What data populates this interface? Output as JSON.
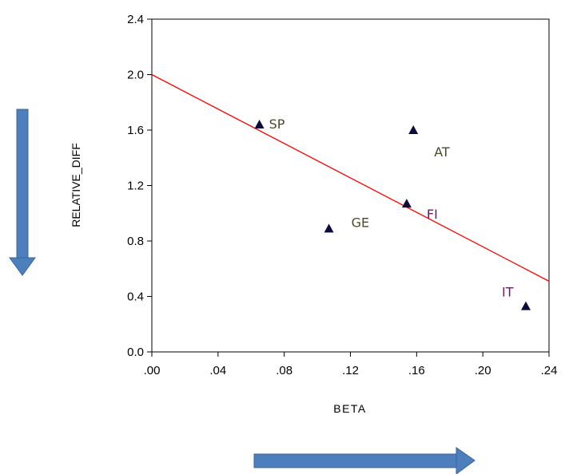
{
  "chart_data": {
    "type": "scatter",
    "xlabel": "BETA",
    "ylabel": "RELATIVE_DIFF",
    "xlim": [
      0.0,
      0.24
    ],
    "ylim": [
      0.0,
      2.4
    ],
    "x_ticks": [
      ".00",
      ".04",
      ".08",
      ".12",
      ".16",
      ".20",
      ".24"
    ],
    "y_ticks": [
      "0.0",
      "0.4",
      "0.8",
      "1.2",
      "1.6",
      "2.0",
      "2.4"
    ],
    "grid": false,
    "legend": "none",
    "points": [
      {
        "label": "SP",
        "x": 0.065,
        "y": 1.64
      },
      {
        "label": "AT",
        "x": 0.158,
        "y": 1.6
      },
      {
        "label": "FI",
        "x": 0.154,
        "y": 1.07
      },
      {
        "label": "GE",
        "x": 0.107,
        "y": 0.89
      },
      {
        "label": "IT",
        "x": 0.226,
        "y": 0.33
      }
    ],
    "fit_line": {
      "x": [
        0.0,
        0.24
      ],
      "y": [
        2.0,
        0.51
      ]
    },
    "colors": {
      "marker": "#0c0c3c",
      "fit_line": "#ff0000",
      "label_text": "#4a4a2a",
      "label_text_alt": "#6a1a6a",
      "arrow": "#4e7fbd",
      "arrow_edge": "#3a64a0"
    }
  }
}
